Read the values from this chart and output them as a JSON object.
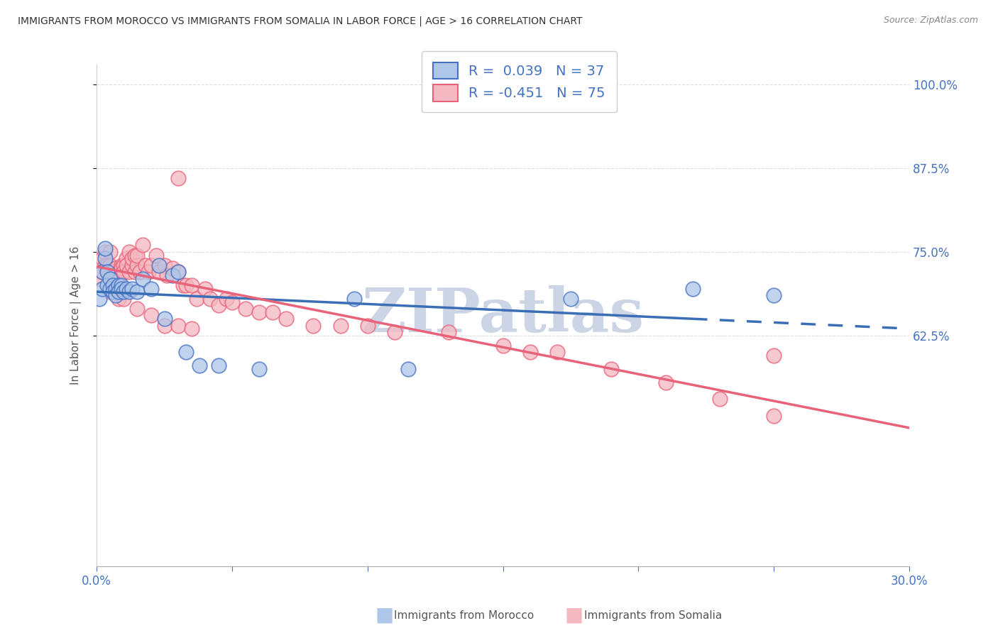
{
  "title": "IMMIGRANTS FROM MOROCCO VS IMMIGRANTS FROM SOMALIA IN LABOR FORCE | AGE > 16 CORRELATION CHART",
  "source": "Source: ZipAtlas.com",
  "ylabel": "In Labor Force | Age > 16",
  "xlim": [
    0.0,
    0.3
  ],
  "ylim": [
    0.28,
    1.03
  ],
  "morocco_color": "#aec6e8",
  "somalia_color": "#f4b8c1",
  "morocco_edge_color": "#4472c4",
  "somalia_edge_color": "#e8637a",
  "morocco_line_color": "#3b6fb5",
  "somalia_line_color": "#e8637a",
  "watermark": "ZIPatlas",
  "watermark_color": "#ccd5e5",
  "background_color": "#ffffff",
  "grid_color": "#dddddd",
  "morocco_x": [
    0.001,
    0.002,
    0.002,
    0.003,
    0.003,
    0.004,
    0.004,
    0.005,
    0.005,
    0.006,
    0.006,
    0.007,
    0.007,
    0.008,
    0.008,
    0.009,
    0.009,
    0.01,
    0.011,
    0.012,
    0.013,
    0.015,
    0.017,
    0.02,
    0.023,
    0.025,
    0.028,
    0.03,
    0.033,
    0.038,
    0.045,
    0.06,
    0.095,
    0.115,
    0.175,
    0.22,
    0.25
  ],
  "morocco_y": [
    0.68,
    0.695,
    0.72,
    0.74,
    0.755,
    0.72,
    0.7,
    0.71,
    0.695,
    0.7,
    0.69,
    0.695,
    0.685,
    0.7,
    0.69,
    0.7,
    0.695,
    0.69,
    0.695,
    0.69,
    0.695,
    0.69,
    0.71,
    0.695,
    0.73,
    0.65,
    0.715,
    0.72,
    0.6,
    0.58,
    0.58,
    0.575,
    0.68,
    0.575,
    0.68,
    0.695,
    0.685
  ],
  "somalia_x": [
    0.001,
    0.002,
    0.002,
    0.003,
    0.003,
    0.004,
    0.004,
    0.005,
    0.005,
    0.006,
    0.006,
    0.007,
    0.007,
    0.008,
    0.008,
    0.009,
    0.009,
    0.01,
    0.01,
    0.011,
    0.011,
    0.012,
    0.012,
    0.013,
    0.013,
    0.014,
    0.014,
    0.015,
    0.015,
    0.016,
    0.017,
    0.018,
    0.019,
    0.02,
    0.022,
    0.023,
    0.025,
    0.026,
    0.028,
    0.03,
    0.03,
    0.032,
    0.033,
    0.035,
    0.037,
    0.04,
    0.042,
    0.045,
    0.048,
    0.05,
    0.055,
    0.06,
    0.065,
    0.07,
    0.08,
    0.09,
    0.1,
    0.11,
    0.13,
    0.15,
    0.16,
    0.17,
    0.19,
    0.21,
    0.23,
    0.25,
    0.005,
    0.008,
    0.01,
    0.015,
    0.02,
    0.025,
    0.03,
    0.035,
    0.25
  ],
  "somalia_y": [
    0.71,
    0.72,
    0.74,
    0.75,
    0.73,
    0.73,
    0.72,
    0.75,
    0.73,
    0.72,
    0.715,
    0.725,
    0.715,
    0.72,
    0.71,
    0.73,
    0.725,
    0.73,
    0.72,
    0.74,
    0.73,
    0.75,
    0.72,
    0.73,
    0.74,
    0.745,
    0.72,
    0.73,
    0.745,
    0.72,
    0.76,
    0.73,
    0.72,
    0.73,
    0.745,
    0.72,
    0.73,
    0.715,
    0.725,
    0.72,
    0.86,
    0.7,
    0.7,
    0.7,
    0.68,
    0.695,
    0.68,
    0.67,
    0.68,
    0.675,
    0.665,
    0.66,
    0.66,
    0.65,
    0.64,
    0.64,
    0.64,
    0.63,
    0.63,
    0.61,
    0.6,
    0.6,
    0.575,
    0.555,
    0.53,
    0.505,
    0.69,
    0.68,
    0.68,
    0.665,
    0.655,
    0.64,
    0.64,
    0.635,
    0.595
  ]
}
